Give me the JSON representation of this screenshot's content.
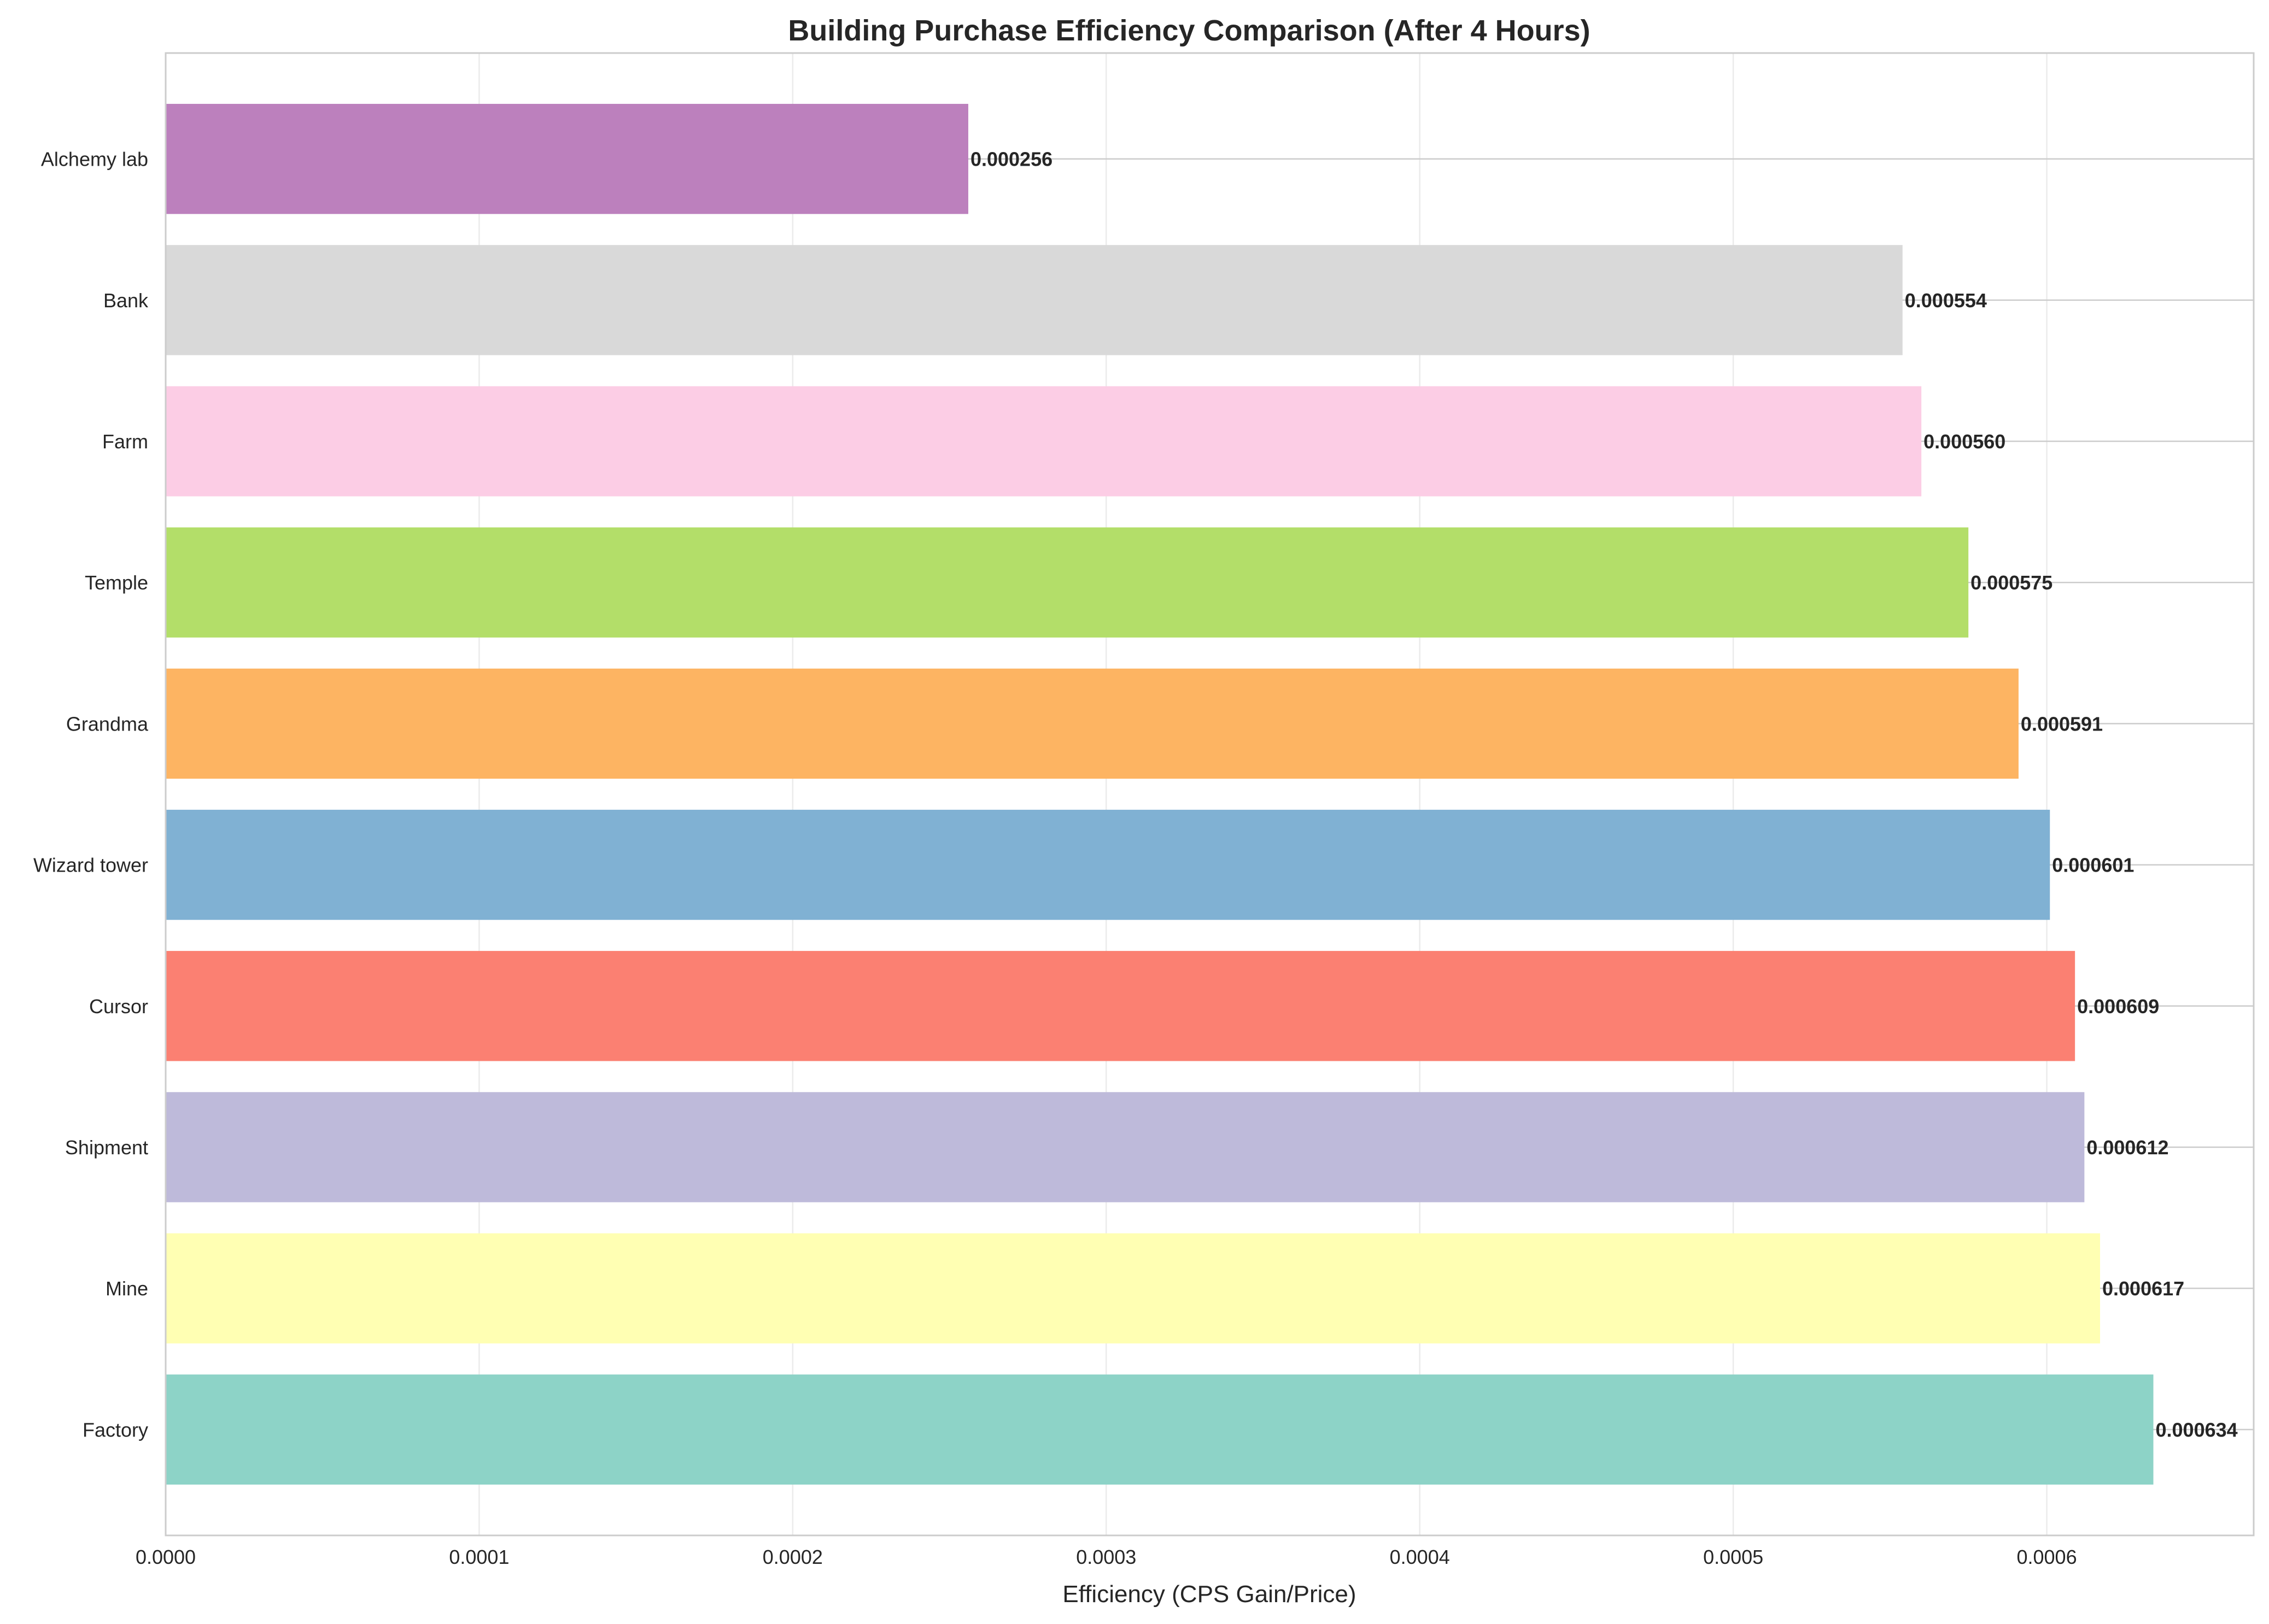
{
  "chart_data": {
    "type": "bar",
    "orientation": "horizontal",
    "title": "Building Purchase Efficiency Comparison (After 4 Hours)",
    "xlabel": "Efficiency (CPS Gain/Price)",
    "ylabel": "",
    "xlim": [
      0,
      0.000666
    ],
    "x_ticks": [
      0,
      0.0001,
      0.0002,
      0.0003,
      0.0004,
      0.0005,
      0.0006
    ],
    "x_tick_labels": [
      "0.0000",
      "0.0001",
      "0.0002",
      "0.0003",
      "0.0004",
      "0.0005",
      "0.0006"
    ],
    "grid": true,
    "legend": "none",
    "categories": [
      "Factory",
      "Mine",
      "Shipment",
      "Cursor",
      "Wizard tower",
      "Grandma",
      "Temple",
      "Farm",
      "Bank",
      "Alchemy lab"
    ],
    "values": [
      0.000634,
      0.000617,
      0.000612,
      0.000609,
      0.000601,
      0.000591,
      0.000575,
      0.00056,
      0.000554,
      0.000256
    ],
    "value_labels": [
      "0.000634",
      "0.000617",
      "0.000612",
      "0.000609",
      "0.000601",
      "0.000591",
      "0.000575",
      "0.000560",
      "0.000554",
      "0.000256"
    ],
    "colors": [
      "#8dd3c7",
      "#ffffb3",
      "#bebada",
      "#fb8072",
      "#80b1d3",
      "#fdb462",
      "#b3de69",
      "#fccde5",
      "#d9d9d9",
      "#bc80bd"
    ],
    "style": {
      "background": "#ffffff",
      "axis_color": "#cccccc",
      "grid_color": "#ebebeb",
      "text_color": "#262626"
    }
  }
}
